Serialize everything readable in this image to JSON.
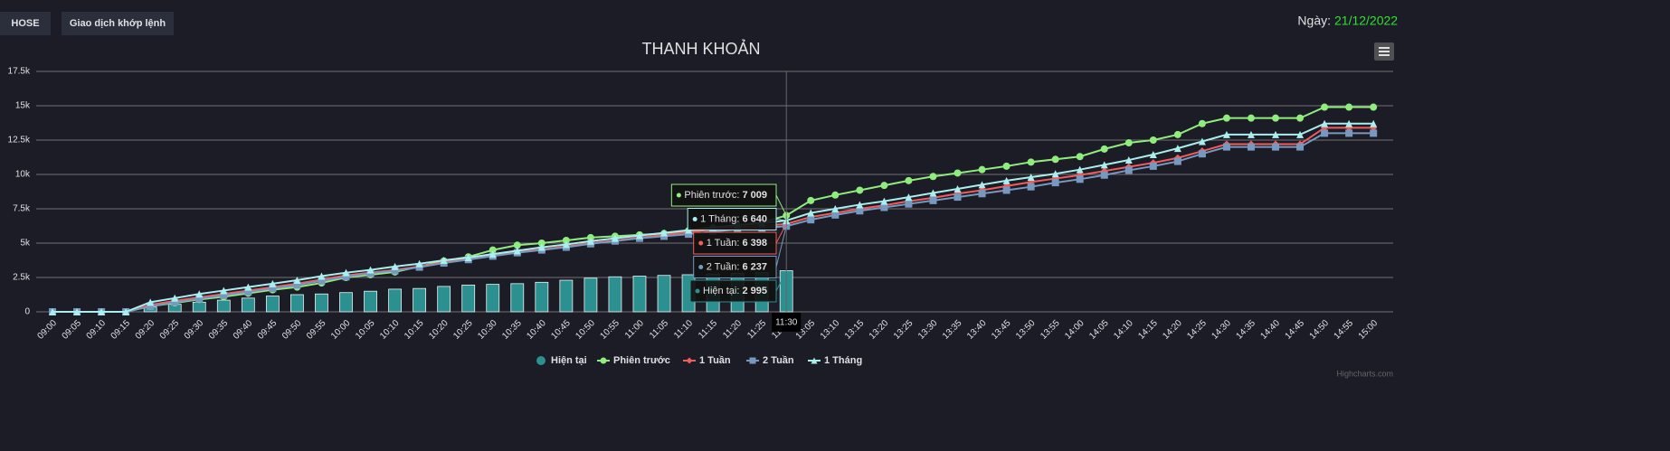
{
  "header": {
    "buttons": [
      "HOSE",
      "Giao dịch khớp lệnh"
    ],
    "date_label": "Ngày:",
    "date": "21/12/2022"
  },
  "credit": "Highcharts.com",
  "chart_data": {
    "type": "line",
    "title": "THANH KHOẢN",
    "categories": [
      "09:00",
      "09:05",
      "09:10",
      "09:15",
      "09:20",
      "09:25",
      "09:30",
      "09:35",
      "09:40",
      "09:45",
      "09:50",
      "09:55",
      "10:00",
      "10:05",
      "10:10",
      "10:15",
      "10:20",
      "10:25",
      "10:30",
      "10:35",
      "10:40",
      "10:45",
      "10:50",
      "10:55",
      "11:00",
      "11:05",
      "11:10",
      "11:15",
      "11:20",
      "11:25",
      "11:30",
      "13:05",
      "13:10",
      "13:15",
      "13:20",
      "13:25",
      "13:30",
      "13:35",
      "13:40",
      "13:45",
      "13:50",
      "13:55",
      "14:00",
      "14:05",
      "14:10",
      "14:15",
      "14:20",
      "14:25",
      "14:30",
      "14:35",
      "14:40",
      "14:45",
      "14:50",
      "14:55",
      "15:00"
    ],
    "ylim": [
      0,
      17500
    ],
    "yticks": [
      0,
      {
        "value": 2500,
        "label": "2.5k"
      },
      {
        "value": 5000,
        "label": "5k"
      },
      {
        "value": 7500,
        "label": "7.5k"
      },
      {
        "value": 10000,
        "label": "10k"
      },
      {
        "value": 12500,
        "label": "12.5k"
      },
      {
        "value": 15000,
        "label": "15k"
      },
      {
        "value": 17500,
        "label": "17.5k"
      }
    ],
    "grid": true,
    "series": [
      {
        "name": "Hiện tại",
        "type": "bar",
        "color": "#2b908f",
        "marker": "circle",
        "values": [
          0,
          0,
          0,
          0,
          350,
          550,
          700,
          850,
          1000,
          1150,
          1250,
          1300,
          1400,
          1500,
          1650,
          1700,
          1850,
          1950,
          2000,
          2050,
          2150,
          2300,
          2450,
          2550,
          2600,
          2650,
          2700,
          2750,
          2800,
          2850,
          2995,
          null,
          null,
          null,
          null,
          null,
          null,
          null,
          null,
          null,
          null,
          null,
          null,
          null,
          null,
          null,
          null,
          null,
          null,
          null,
          null,
          null,
          null,
          null,
          null
        ]
      },
      {
        "name": "Phiên trước",
        "type": "line",
        "color": "#90ed7d",
        "marker": "circle",
        "values": [
          0,
          0,
          0,
          0,
          400,
          650,
          900,
          1100,
          1350,
          1600,
          1800,
          2100,
          2500,
          2700,
          2900,
          3300,
          3700,
          4000,
          4500,
          4850,
          5000,
          5200,
          5400,
          5500,
          5600,
          5700,
          5900,
          6100,
          6300,
          6500,
          7009,
          8100,
          8500,
          8850,
          9200,
          9550,
          9850,
          10100,
          10350,
          10600,
          10900,
          11100,
          11300,
          11850,
          12300,
          12500,
          12900,
          13700,
          14100,
          14100,
          14100,
          14100,
          14900,
          14900,
          14900
        ]
      },
      {
        "name": "1 Tuần",
        "type": "line",
        "color": "#f45b5b",
        "marker": "diamond",
        "values": [
          0,
          0,
          0,
          0,
          500,
          800,
          1050,
          1300,
          1550,
          1800,
          2050,
          2350,
          2650,
          2850,
          3050,
          3300,
          3600,
          3850,
          4100,
          4350,
          4550,
          4750,
          5000,
          5200,
          5400,
          5600,
          5800,
          6000,
          6150,
          6250,
          6398,
          6900,
          7200,
          7500,
          7750,
          8050,
          8300,
          8600,
          8850,
          9150,
          9450,
          9700,
          9950,
          10250,
          10550,
          10850,
          11200,
          11700,
          12200,
          12200,
          12200,
          12200,
          13400,
          13400,
          13400
        ]
      },
      {
        "name": "2 Tuần",
        "type": "line",
        "color": "#7798bf",
        "marker": "square",
        "values": [
          0,
          0,
          0,
          0,
          400,
          700,
          950,
          1200,
          1450,
          1700,
          1950,
          2250,
          2550,
          2800,
          3000,
          3250,
          3550,
          3800,
          4050,
          4300,
          4500,
          4700,
          4950,
          5150,
          5350,
          5500,
          5650,
          5850,
          6000,
          6100,
          6237,
          6700,
          7050,
          7350,
          7600,
          7850,
          8100,
          8350,
          8600,
          8850,
          9100,
          9400,
          9650,
          9950,
          10300,
          10600,
          10950,
          11500,
          12000,
          12000,
          12000,
          12000,
          13000,
          13000,
          13000
        ]
      },
      {
        "name": "1 Tháng",
        "type": "line",
        "color": "#aaeeee",
        "marker": "triangle",
        "values": [
          0,
          0,
          0,
          0,
          700,
          1000,
          1300,
          1550,
          1800,
          2050,
          2300,
          2600,
          2850,
          3050,
          3300,
          3500,
          3750,
          3950,
          4200,
          4450,
          4700,
          4900,
          5150,
          5350,
          5550,
          5750,
          5950,
          6150,
          6300,
          6450,
          6640,
          7200,
          7500,
          7800,
          8050,
          8350,
          8650,
          8950,
          9250,
          9550,
          9800,
          10050,
          10350,
          10700,
          11050,
          11450,
          11900,
          12400,
          12900,
          12900,
          12900,
          12900,
          13700,
          13700,
          13700
        ]
      }
    ],
    "tooltip": {
      "x": "11:30",
      "items": [
        {
          "name": "Phiên trước:",
          "value": 7009,
          "label": "7 009",
          "color": "#90ed7d"
        },
        {
          "name": "1 Tháng:",
          "value": 6640,
          "label": "6 640",
          "color": "#aaeeee"
        },
        {
          "name": "1 Tuần:",
          "value": 6398,
          "label": "6 398",
          "color": "#f45b5b"
        },
        {
          "name": "2 Tuần:",
          "value": 6237,
          "label": "6 237",
          "color": "#7798bf"
        },
        {
          "name": "Hiện tại:",
          "value": 2995,
          "label": "2 995",
          "color": "#2b908f"
        }
      ]
    }
  }
}
